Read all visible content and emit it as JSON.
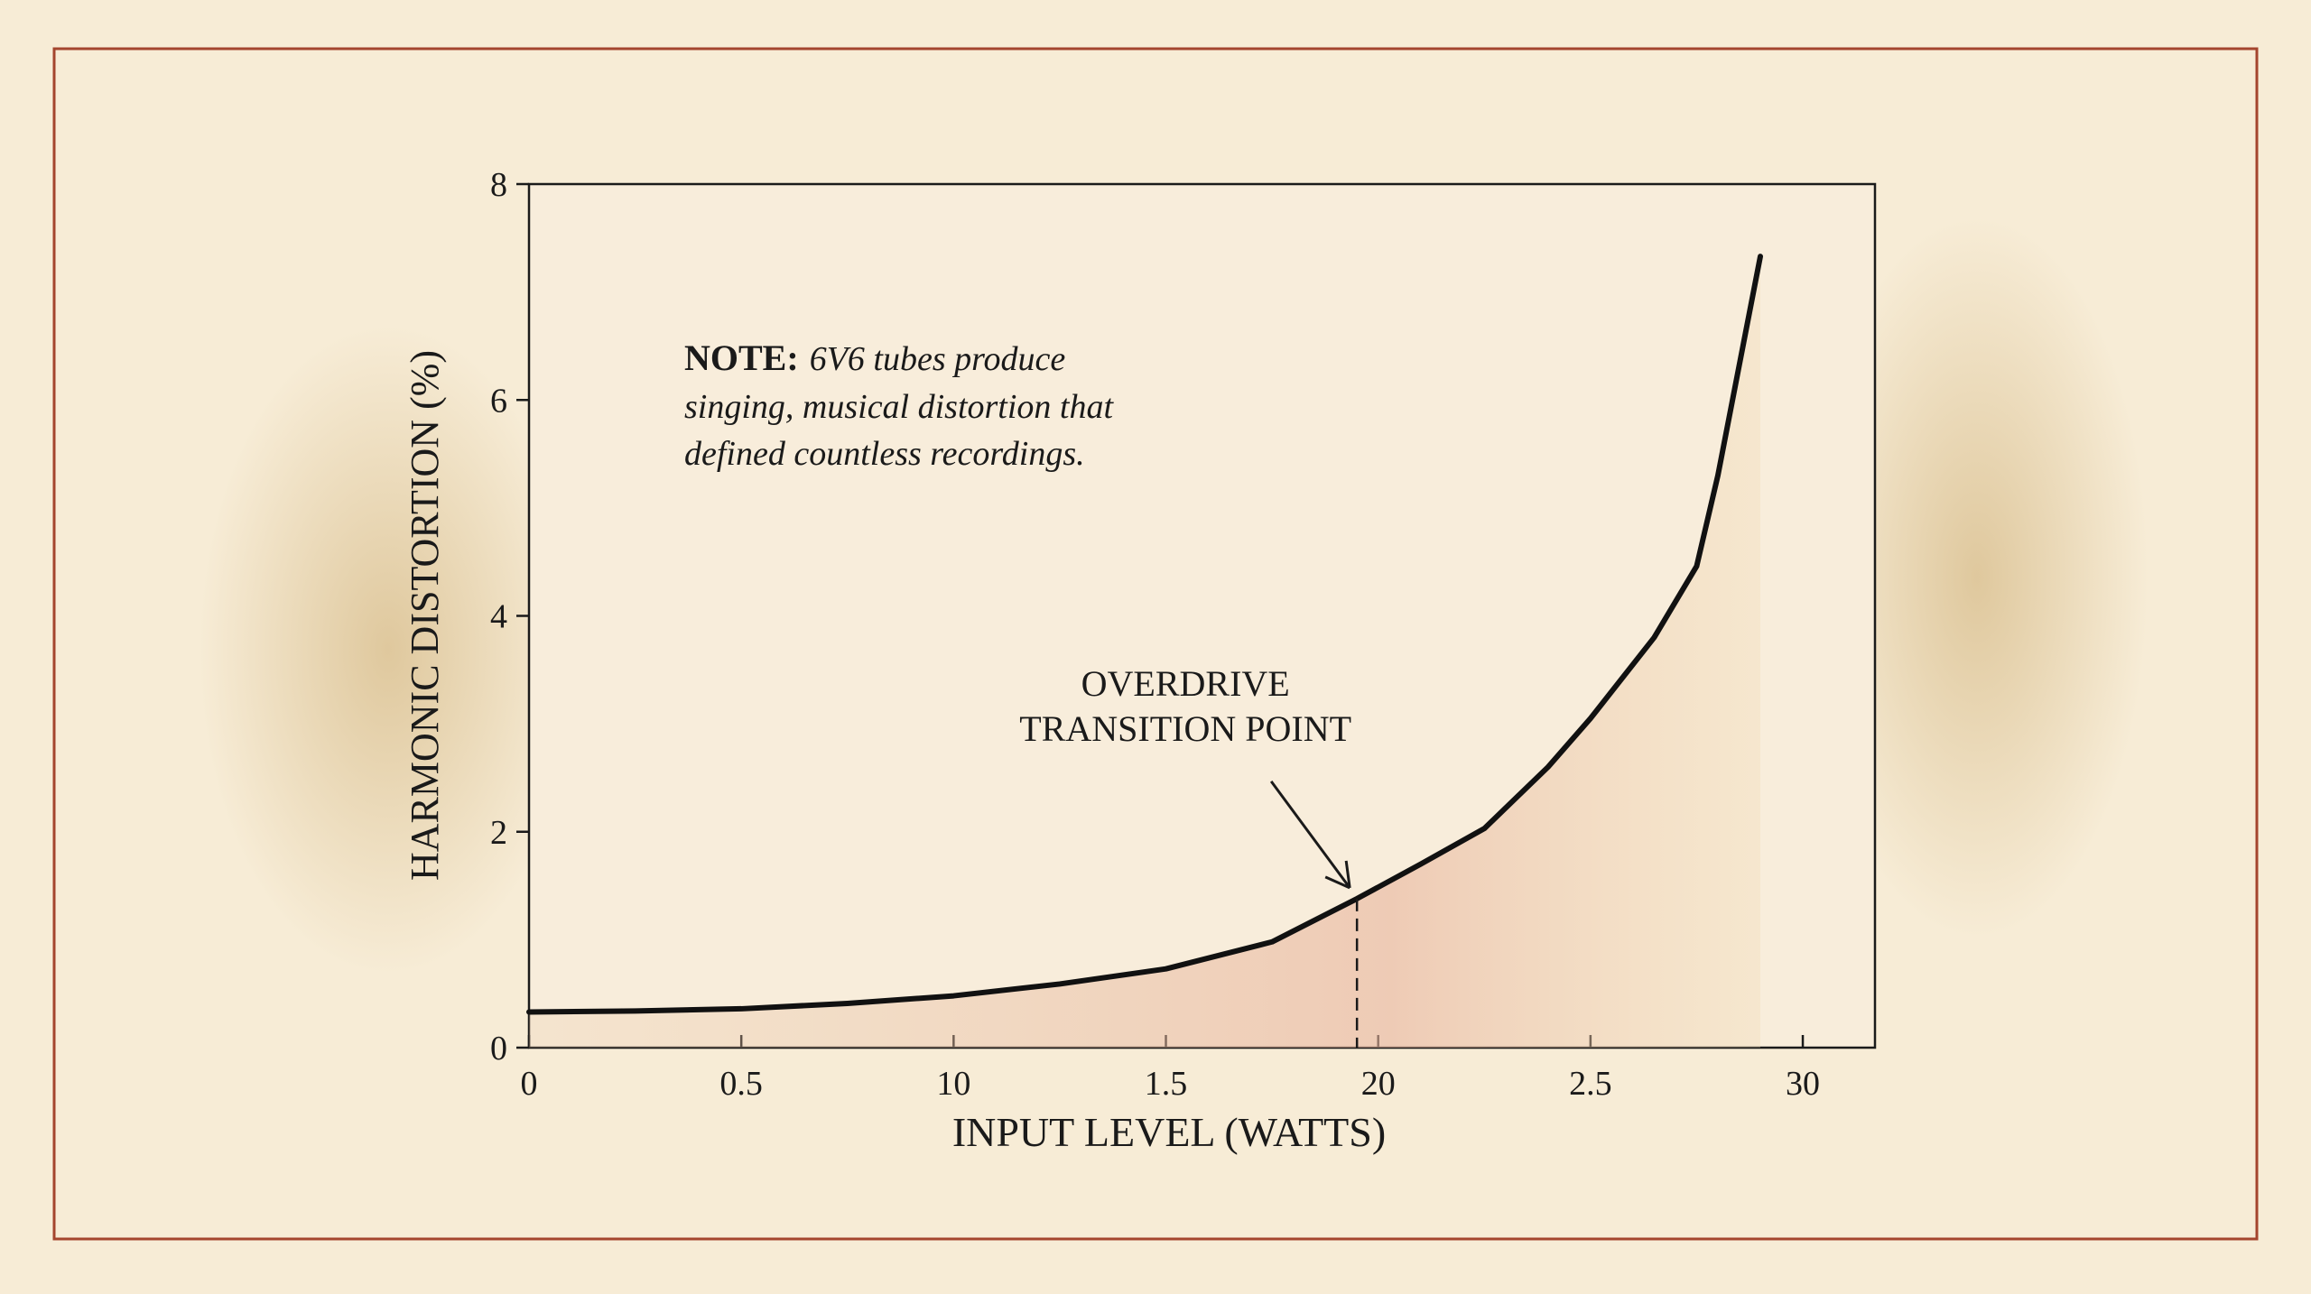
{
  "chart_data": {
    "type": "line",
    "x": [
      0,
      2.5,
      5,
      7.5,
      10,
      12.5,
      15,
      17.5,
      19.5,
      21,
      22.5,
      24,
      25,
      26.5,
      27.5,
      28,
      29
    ],
    "values": [
      0.33,
      0.34,
      0.36,
      0.41,
      0.48,
      0.59,
      0.73,
      0.98,
      1.38,
      1.7,
      2.03,
      2.6,
      3.05,
      3.8,
      4.46,
      5.3,
      7.33
    ],
    "color": "#111111",
    "xlabel": "INPUT LEVEL (WATTS)",
    "ylabel": "HARMONIC DISTORTION (%)",
    "xlim": [
      0,
      31.7
    ],
    "ylim": [
      0,
      8
    ],
    "xticks": [
      0,
      {
        "value": 5,
        "label": "0.5"
      },
      10,
      {
        "value": 15,
        "label": "1.5"
      },
      20,
      {
        "value": 25,
        "label": "2.5"
      },
      30
    ],
    "yticks": [
      0,
      2,
      4,
      6,
      8
    ],
    "annotation": {
      "text": [
        "OVERDRIVE",
        "TRANSITION POINT"
      ],
      "x": 19.5,
      "y": 1.38
    },
    "note": {
      "label": "NOTE:",
      "lines": [
        "6V6 tubes produce",
        "singing, musical distortion that",
        "defined countless recordings."
      ]
    }
  }
}
